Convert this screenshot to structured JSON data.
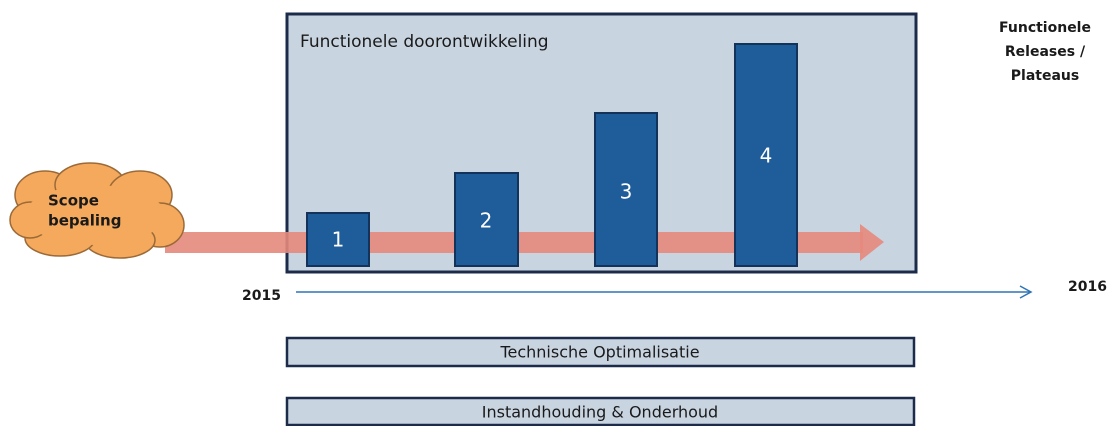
{
  "scope": {
    "lines": [
      "Scope",
      "bepaling"
    ]
  },
  "main_box": {
    "title": "Functionele doorontwikkeling"
  },
  "releases": [
    {
      "label": "1"
    },
    {
      "label": "2"
    },
    {
      "label": "3"
    },
    {
      "label": "4"
    }
  ],
  "side_label": {
    "lines": [
      "Functionele",
      "Releases /",
      "Plateaus"
    ]
  },
  "timeline": {
    "start": "2015",
    "end": "2016"
  },
  "tracks": [
    {
      "label": "Technische Optimalisatie"
    },
    {
      "label": "Instandhouding & Onderhoud"
    }
  ]
}
